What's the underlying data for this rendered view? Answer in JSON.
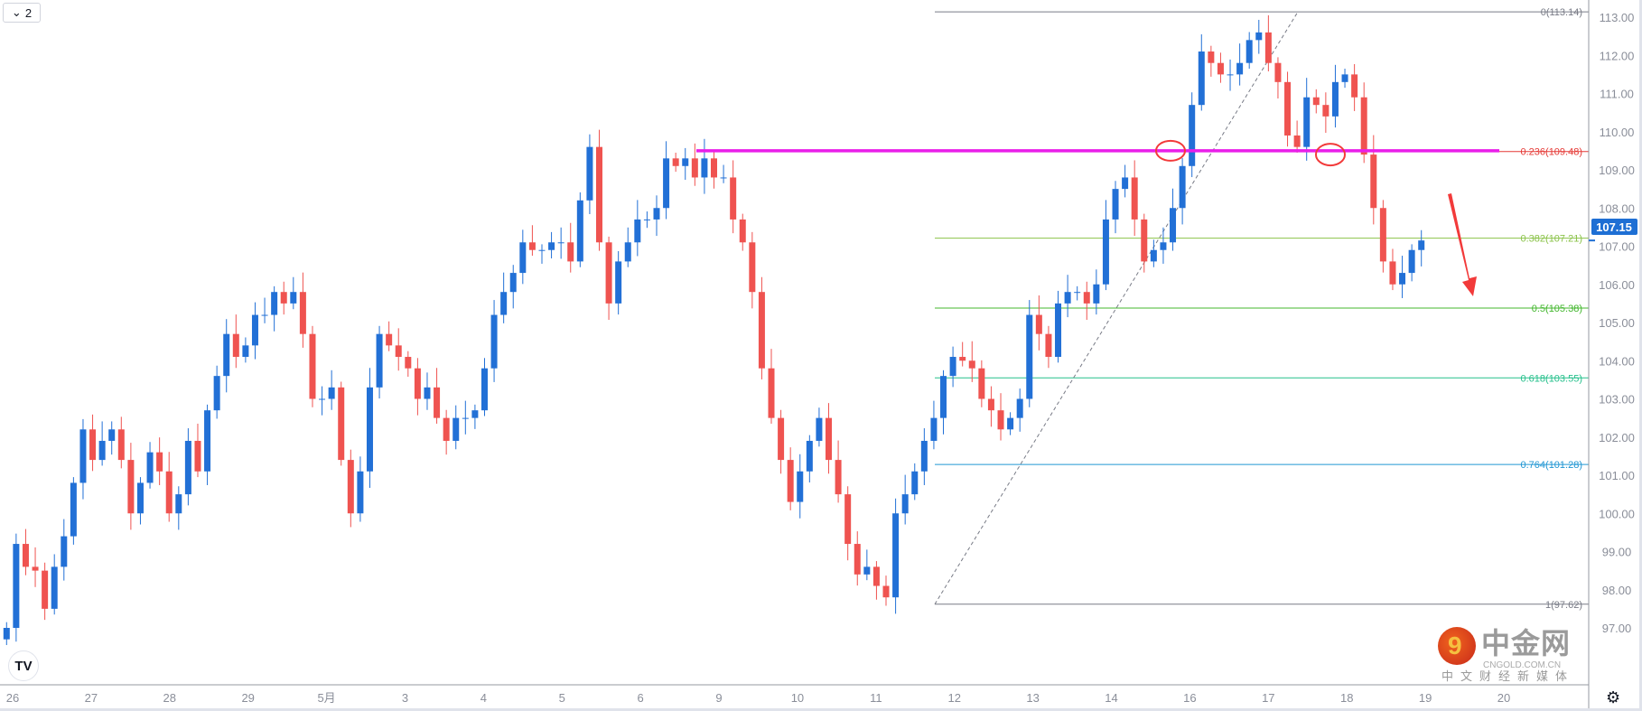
{
  "toolbar": {
    "interval_label": "2",
    "dropdown_icon": "chevron-down-icon"
  },
  "watermark": {
    "brand": "中金网",
    "domain": "CNGOLD.COM.CN",
    "tagline": "中文财经新媒体"
  },
  "colors": {
    "up": "#2270d6",
    "down": "#ef5350",
    "resistance": "#e91ee9",
    "annotation": "#f23a3a",
    "axis_text": "#8a8e99",
    "last_price_bg": "#1e6fd4"
  },
  "chart_data": {
    "type": "candlestick",
    "title": "",
    "x_tick_labels": [
      "26",
      "27",
      "28",
      "29",
      "5月",
      "3",
      "4",
      "5",
      "6",
      "9",
      "10",
      "11",
      "12",
      "13",
      "14",
      "16",
      "17",
      "18",
      "19",
      "20"
    ],
    "y_tick_labels": [
      "113.00",
      "112.00",
      "111.00",
      "110.00",
      "109.00",
      "108.00",
      "107.00",
      "106.00",
      "105.00",
      "104.00",
      "103.00",
      "102.00",
      "101.00",
      "100.00",
      "99.00",
      "98.00",
      "97.00"
    ],
    "ylim": [
      96.3,
      113.4
    ],
    "last_price": "107.15",
    "closes": [
      97.0,
      99.2,
      98.6,
      98.5,
      97.5,
      98.6,
      99.4,
      100.8,
      102.2,
      101.4,
      101.9,
      102.2,
      101.4,
      100.0,
      100.8,
      101.6,
      101.1,
      100.0,
      100.5,
      101.9,
      101.1,
      102.7,
      103.6,
      104.7,
      104.1,
      104.4,
      105.2,
      105.2,
      105.8,
      105.5,
      105.8,
      104.7,
      103.0,
      103.0,
      103.3,
      101.4,
      100.0,
      101.1,
      103.3,
      104.7,
      104.4,
      104.1,
      103.8,
      103.0,
      103.3,
      102.5,
      101.9,
      102.5,
      102.5,
      102.7,
      103.8,
      105.2,
      105.8,
      106.3,
      107.1,
      106.9,
      106.9,
      107.1,
      107.1,
      106.6,
      108.2,
      109.6,
      107.1,
      105.5,
      106.6,
      107.1,
      107.7,
      107.7,
      108.0,
      109.3,
      109.1,
      109.3,
      108.8,
      109.3,
      108.8,
      108.8,
      107.7,
      107.1,
      105.8,
      103.8,
      102.5,
      101.4,
      100.3,
      101.1,
      101.9,
      102.5,
      101.4,
      100.5,
      99.2,
      98.4,
      98.6,
      98.1,
      97.8,
      100.0,
      100.5,
      101.1,
      101.9,
      102.5,
      103.6,
      104.1,
      104.0,
      103.8,
      103.0,
      102.7,
      102.2,
      102.5,
      103.0,
      105.2,
      104.7,
      104.1,
      105.5,
      105.8,
      105.8,
      105.5,
      106.0,
      107.7,
      108.5,
      108.8,
      107.7,
      106.6,
      106.9,
      107.1,
      108.0,
      109.1,
      110.7,
      112.1,
      111.8,
      111.5,
      111.5,
      111.8,
      112.4,
      112.6,
      111.8,
      111.3,
      109.9,
      109.6,
      110.9,
      110.7,
      110.4,
      111.3,
      111.5,
      110.9,
      109.4,
      108.0,
      106.6,
      106.0,
      106.3,
      106.9,
      107.15
    ],
    "horizontal_line": {
      "price": 109.5,
      "color": "#e91ee9"
    },
    "fibonacci": {
      "trend_from": 97.62,
      "trend_to": 113.14,
      "levels": [
        {
          "label": "0(113.14)",
          "price": 113.14,
          "color": "#787b86"
        },
        {
          "label": "0.236(109.48)",
          "price": 109.48,
          "color": "#e53935"
        },
        {
          "label": "0.382(107.21)",
          "price": 107.21,
          "color": "#8bc34a"
        },
        {
          "label": "0.5(105.38)",
          "price": 105.38,
          "color": "#43b72e"
        },
        {
          "label": "0.618(103.55)",
          "price": 103.55,
          "color": "#26c08c"
        },
        {
          "label": "0.764(101.28)",
          "price": 101.28,
          "color": "#2196d3"
        },
        {
          "label": "1(97.62)",
          "price": 97.62,
          "color": "#787b86"
        }
      ]
    },
    "annotations": [
      {
        "type": "circle",
        "price": 109.5,
        "color": "#f23a3a"
      },
      {
        "type": "circle",
        "price": 109.4,
        "color": "#f23a3a"
      },
      {
        "type": "arrow-down",
        "color": "#f23a3a"
      }
    ]
  }
}
